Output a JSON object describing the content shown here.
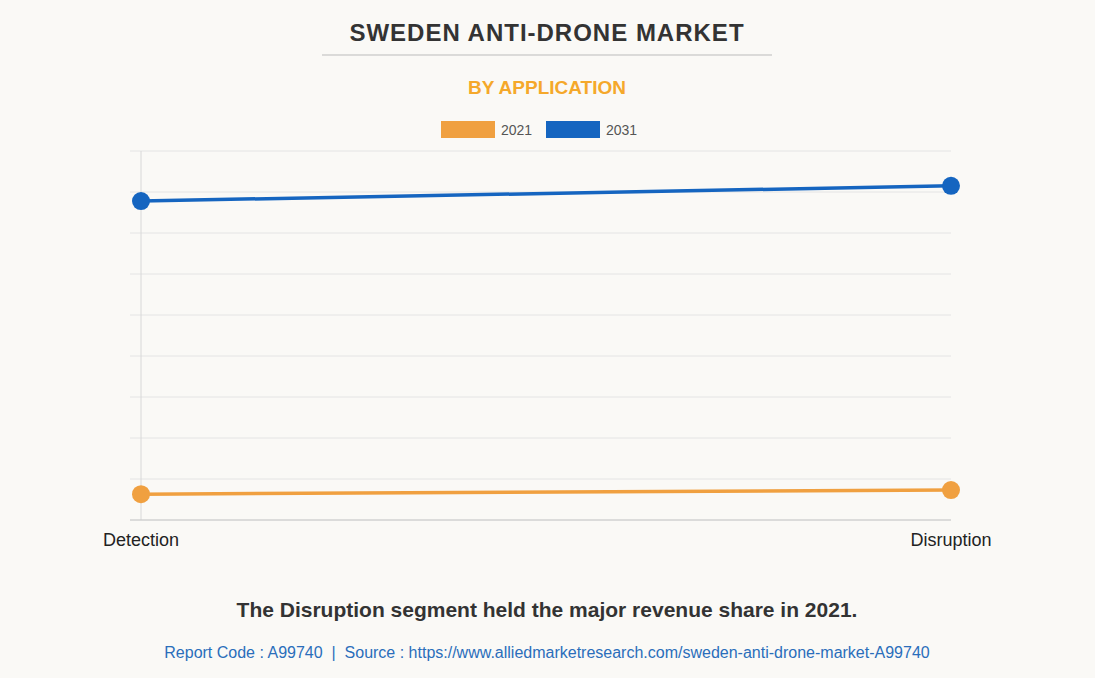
{
  "chart_data": {
    "type": "line",
    "title": "SWEDEN ANTI-DRONE MARKET",
    "subtitle": "BY APPLICATION",
    "caption": "The Disruption segment held the major revenue share in 2021.",
    "source": "Report Code : A99740  |  Source : https://www.alliedmarketresearch.com/sweden-anti-drone-market-A99740",
    "categories": [
      "Detection",
      "Disruption"
    ],
    "series": [
      {
        "name": "2021",
        "color": "#f0a040",
        "values": [
          6.3,
          7.3
        ]
      },
      {
        "name": "2031",
        "color": "#1565c0",
        "values": [
          77.8,
          81.5
        ]
      }
    ],
    "ylim": [
      0,
      90
    ],
    "yticks": [
      0,
      10,
      20,
      30,
      40,
      50,
      60,
      70,
      80,
      90
    ],
    "grid": true,
    "legend": "top",
    "marker": "circle",
    "tick_labels": "x"
  }
}
